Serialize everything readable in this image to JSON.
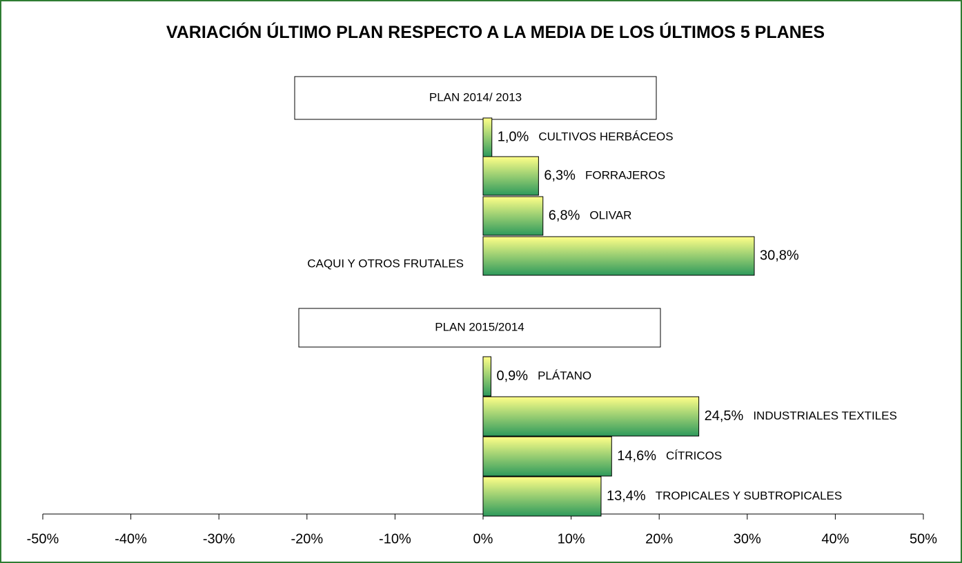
{
  "chart_data": {
    "type": "bar",
    "orientation": "horizontal",
    "title": "VARIACIÓN ÚLTIMO PLAN RESPECTO A LA MEDIA DE LOS ÚLTIMOS 5 PLANES",
    "groups": [
      {
        "name": "PLAN 2014/ 2013",
        "categories": [
          "CULTIVOS HERBÁCEOS",
          "FORRAJEROS",
          "OLIVAR",
          "CAQUI Y OTROS FRUTALES"
        ],
        "values": [
          1.0,
          6.3,
          6.8,
          30.8
        ],
        "value_labels": [
          "1,0%",
          "6,3%",
          "6,8%",
          "30,8%"
        ]
      },
      {
        "name": "PLAN 2015/2014",
        "categories": [
          "PLÁTANO",
          "INDUSTRIALES TEXTILES",
          "CÍTRICOS",
          "TROPICALES Y SUBTROPICALES"
        ],
        "values": [
          0.9,
          24.5,
          14.6,
          13.4
        ],
        "value_labels": [
          "0,9%",
          "24,5%",
          "14,6%",
          "13,4%"
        ]
      }
    ],
    "colors": [
      "#ffff88",
      "#2e9a5c"
    ],
    "xlim": [
      -50,
      50
    ],
    "xticks": [
      {
        "value": -50,
        "label": "-50%"
      },
      {
        "value": -40,
        "label": "-40%"
      },
      {
        "value": -30,
        "label": "-30%"
      },
      {
        "value": -20,
        "label": "-20%"
      },
      {
        "value": -10,
        "label": "-10%"
      },
      {
        "value": 0,
        "label": "0%"
      },
      {
        "value": 10,
        "label": "10%"
      },
      {
        "value": 20,
        "label": "20%"
      },
      {
        "value": 30,
        "label": "30%"
      },
      {
        "value": 40,
        "label": "40%"
      },
      {
        "value": 50,
        "label": "50%"
      }
    ]
  }
}
